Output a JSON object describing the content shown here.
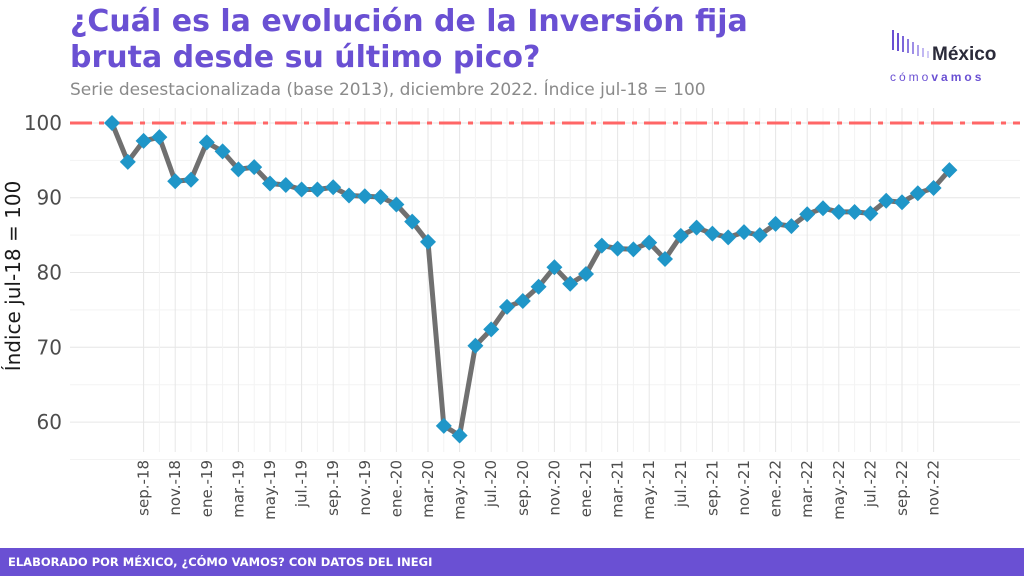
{
  "header": {
    "title": "¿Cuál es la evolución de la Inversión fija bruta desde su último pico?",
    "subtitle": "Serie desestacionalizada (base 2013), diciembre 2022. Índice jul-18 = 100"
  },
  "logo": {
    "word": "México",
    "sub_light": "cómo",
    "sub_bold": "vamos"
  },
  "footer": {
    "text": "ELABORADO POR MÉXICO, ¿CÓMO VAMOS? CON DATOS DEL INEGI"
  },
  "colors": {
    "accent": "#6a50d3",
    "line": "#707070",
    "marker": "#1f96c8",
    "reference": "#ff6666"
  },
  "chart_data": {
    "type": "line",
    "ylabel": "Índice jul-18 = 100",
    "xlabel": "",
    "yticks": [
      60,
      70,
      80,
      90,
      100
    ],
    "ylim": [
      56,
      102
    ],
    "reference_line": {
      "value": 100,
      "style": "dash-dot"
    },
    "grid": true,
    "xtick_labels": [
      "sep.-18",
      "nov.-18",
      "ene.-19",
      "mar.-19",
      "may.-19",
      "jul.-19",
      "sep.-19",
      "nov.-19",
      "ene.-20",
      "mar.-20",
      "may.-20",
      "jul.-20",
      "sep.-20",
      "nov.-20",
      "ene.-21",
      "mar.-21",
      "may.-21",
      "jul.-21",
      "sep.-21",
      "nov.-21",
      "ene.-22",
      "mar.-22",
      "may.-22",
      "jul.-22",
      "sep.-22",
      "nov.-22"
    ],
    "x": [
      "jul.-18",
      "ago.-18",
      "sep.-18",
      "oct.-18",
      "nov.-18",
      "dic.-18",
      "ene.-19",
      "feb.-19",
      "mar.-19",
      "abr.-19",
      "may.-19",
      "jun.-19",
      "jul.-19",
      "ago.-19",
      "sep.-19",
      "oct.-19",
      "nov.-19",
      "dic.-19",
      "ene.-20",
      "feb.-20",
      "mar.-20",
      "abr.-20",
      "may.-20",
      "jun.-20",
      "jul.-20",
      "ago.-20",
      "sep.-20",
      "oct.-20",
      "nov.-20",
      "dic.-20",
      "ene.-21",
      "feb.-21",
      "mar.-21",
      "abr.-21",
      "may.-21",
      "jun.-21",
      "jul.-21",
      "ago.-21",
      "sep.-21",
      "oct.-21",
      "nov.-21",
      "dic.-21",
      "ene.-22",
      "feb.-22",
      "mar.-22",
      "abr.-22",
      "may.-22",
      "jun.-22",
      "jul.-22",
      "ago.-22",
      "sep.-22",
      "oct.-22",
      "nov.-22",
      "dic.-22"
    ],
    "series": [
      {
        "values": [
          100,
          94.8,
          97.6,
          98.1,
          92.2,
          92.4,
          97.4,
          96.2,
          93.8,
          94.1,
          91.9,
          91.7,
          91.1,
          91.1,
          91.4,
          90.3,
          90.2,
          90.1,
          89.1,
          86.8,
          84.1,
          59.5,
          58.2,
          70.2,
          72.4,
          75.4,
          76.2,
          78.1,
          80.7,
          78.5,
          79.8,
          83.6,
          83.2,
          83.1,
          84.0,
          81.8,
          84.9,
          86.0,
          85.2,
          84.7,
          85.4,
          85.0,
          86.5,
          86.2,
          87.8,
          88.6,
          88.1,
          88.1,
          87.9,
          89.6,
          89.4,
          90.6,
          91.3,
          93.7
        ]
      }
    ]
  }
}
